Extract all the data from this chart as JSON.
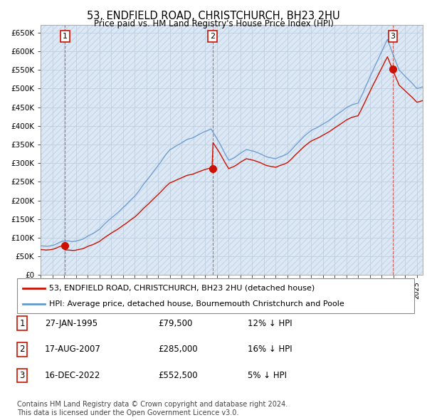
{
  "title": "53, ENDFIELD ROAD, CHRISTCHURCH, BH23 2HU",
  "subtitle": "Price paid vs. HM Land Registry's House Price Index (HPI)",
  "ylim": [
    0,
    670000
  ],
  "yticks": [
    0,
    50000,
    100000,
    150000,
    200000,
    250000,
    300000,
    350000,
    400000,
    450000,
    500000,
    550000,
    600000,
    650000
  ],
  "ytick_labels": [
    "£0",
    "£50K",
    "£100K",
    "£150K",
    "£200K",
    "£250K",
    "£300K",
    "£350K",
    "£400K",
    "£450K",
    "£500K",
    "£550K",
    "£600K",
    "£650K"
  ],
  "sale_dates_num": [
    1995.074,
    2007.625,
    2022.956
  ],
  "sale_prices": [
    79500,
    285000,
    552500
  ],
  "sale_labels": [
    "1",
    "2",
    "3"
  ],
  "hpi_color": "#6699cc",
  "sale_color": "#cc1100",
  "bg_color": "#dde8f5",
  "hatch_color": "#c8d8ea",
  "grid_color": "#c0cfe0",
  "legend_label_sale": "53, ENDFIELD ROAD, CHRISTCHURCH, BH23 2HU (detached house)",
  "legend_label_hpi": "HPI: Average price, detached house, Bournemouth Christchurch and Poole",
  "table_rows": [
    [
      "1",
      "27-JAN-1995",
      "£79,500",
      "12% ↓ HPI"
    ],
    [
      "2",
      "17-AUG-2007",
      "£285,000",
      "16% ↓ HPI"
    ],
    [
      "3",
      "16-DEC-2022",
      "£552,500",
      "5% ↓ HPI"
    ]
  ],
  "footnote": "Contains HM Land Registry data © Crown copyright and database right 2024.\nThis data is licensed under the Open Government Licence v3.0.",
  "xstart": 1993.0,
  "xend": 2025.5
}
